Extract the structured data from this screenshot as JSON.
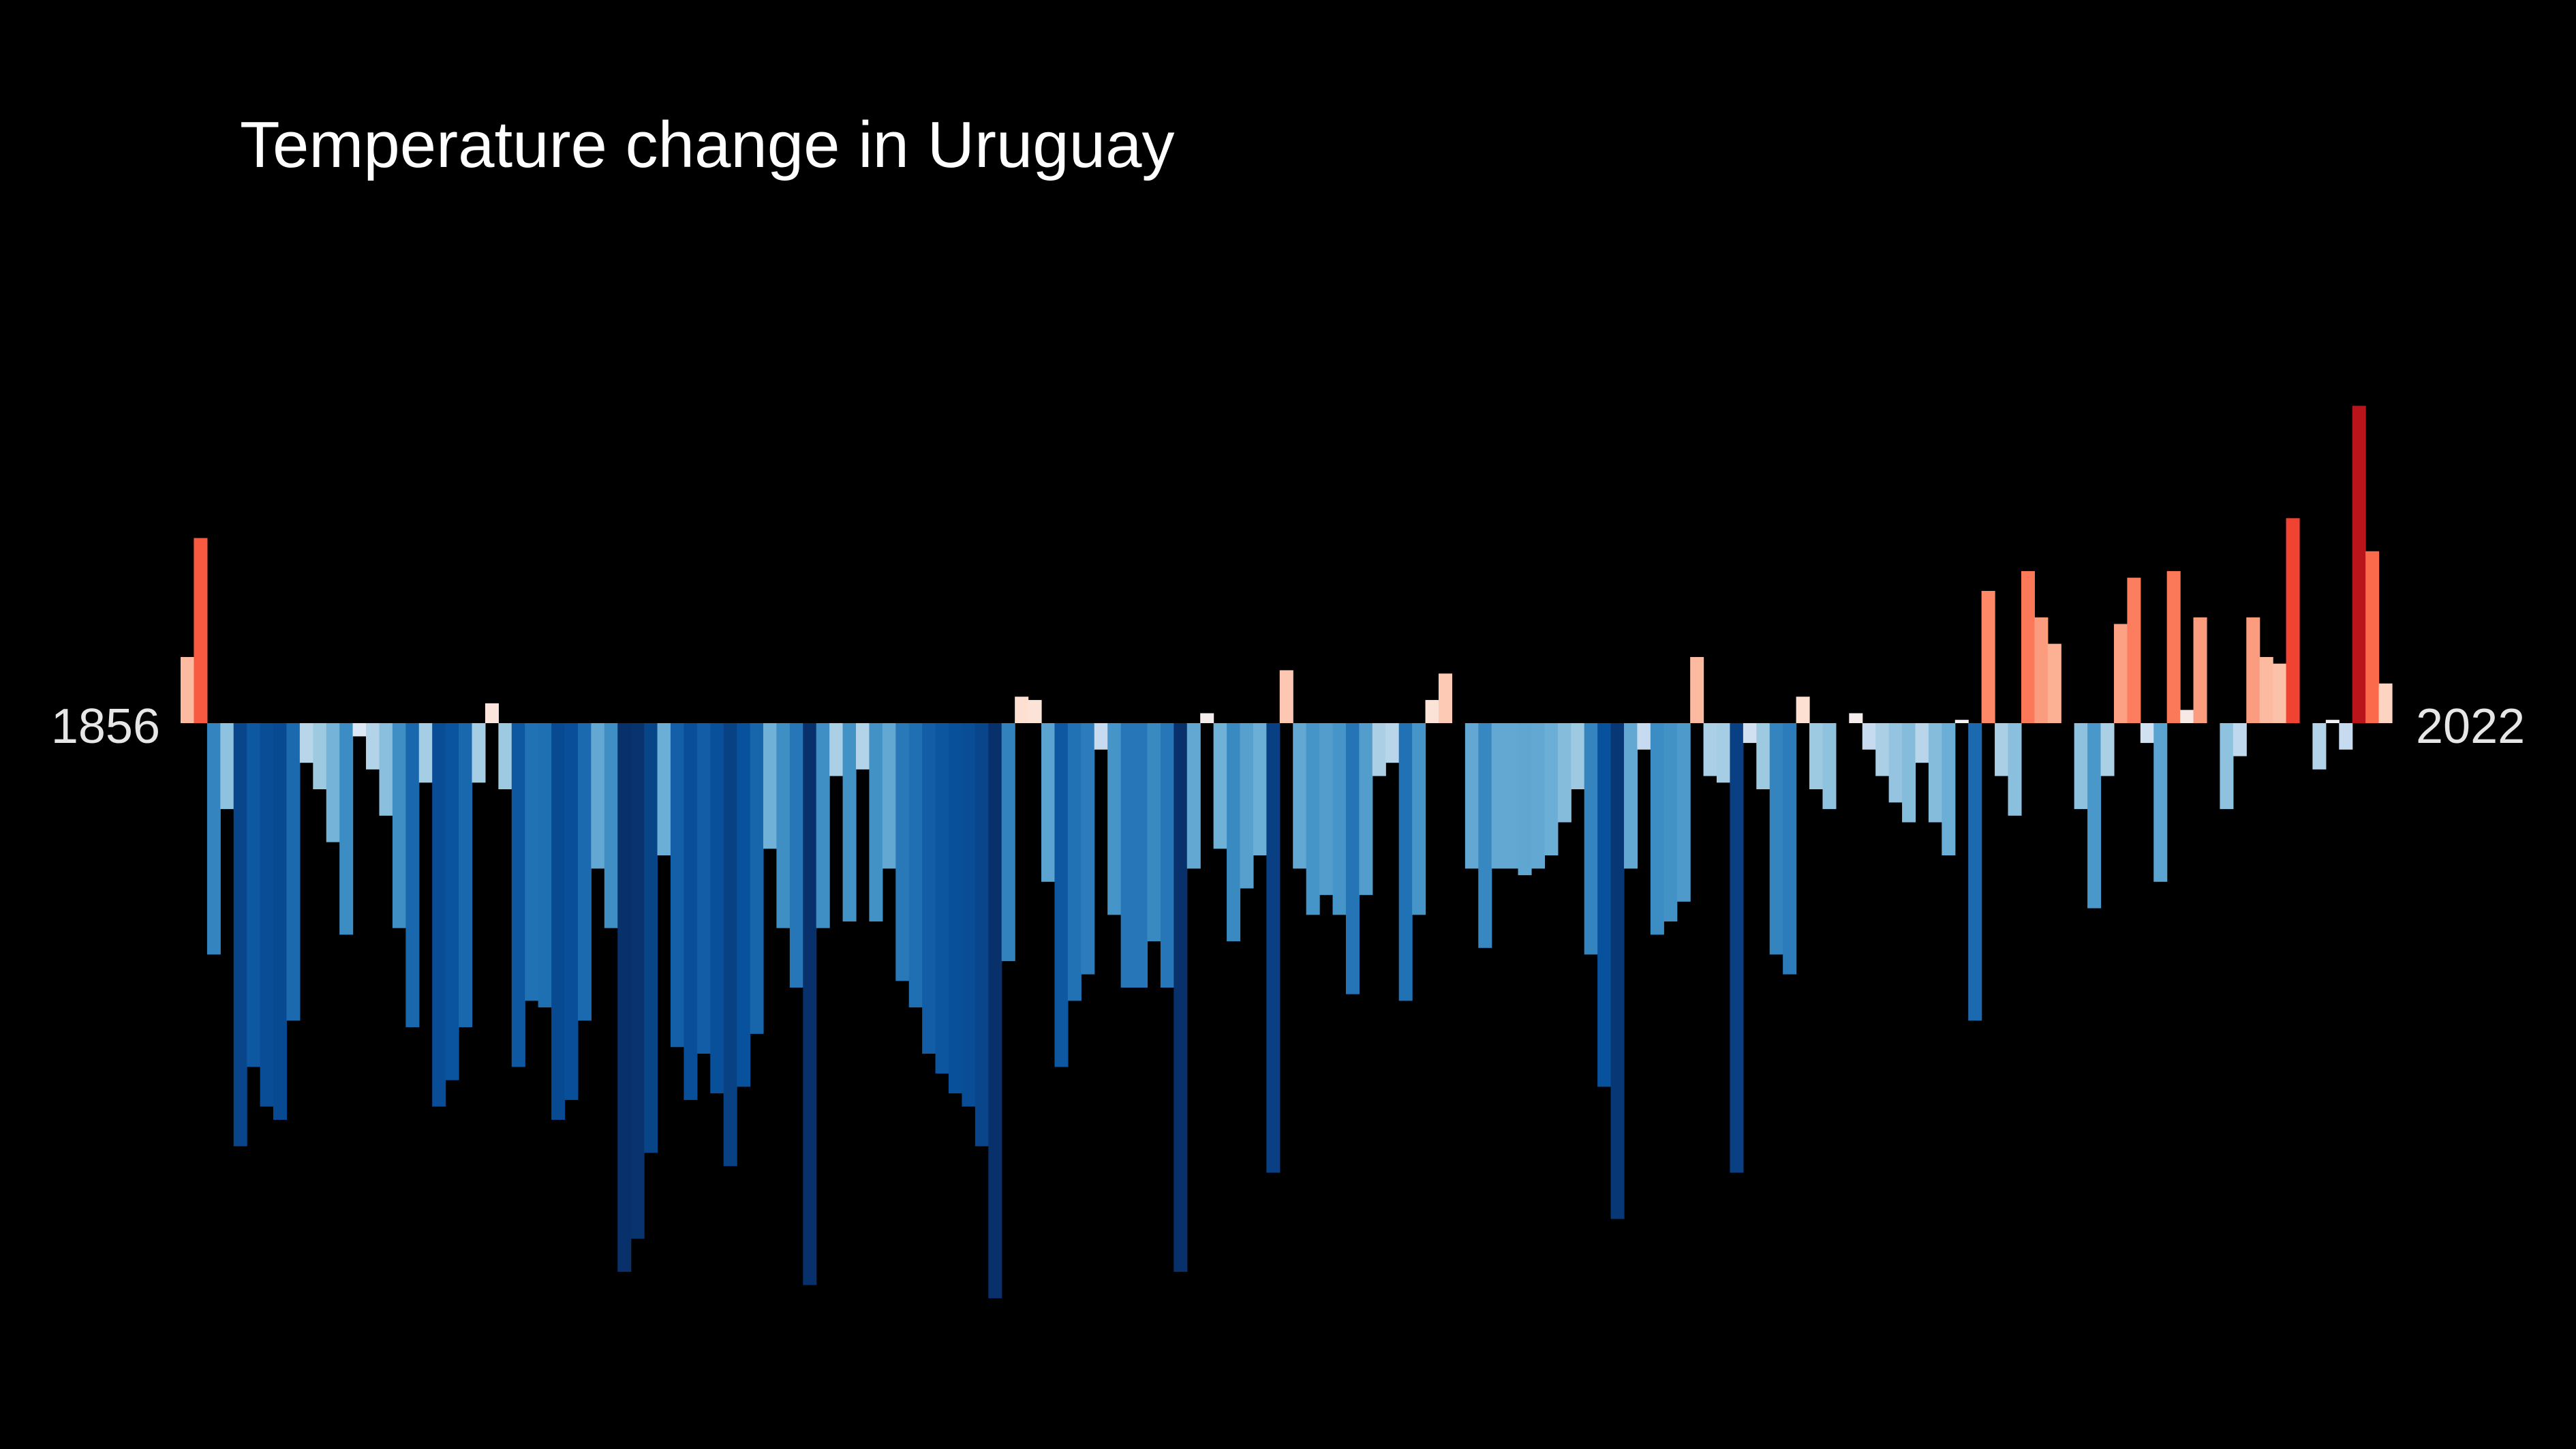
{
  "chart_data": {
    "type": "bar",
    "title": "Temperature change in Uruguay",
    "start_label": "1856",
    "end_label": "2022",
    "x": {
      "start": 1856,
      "end": 2022
    },
    "ylim": [
      -0.87,
      0.68
    ],
    "values": [
      0.1,
      0.28,
      -0.35,
      -0.13,
      -0.64,
      -0.52,
      -0.58,
      -0.6,
      -0.45,
      -0.06,
      -0.1,
      -0.18,
      -0.32,
      -0.02,
      -0.07,
      -0.14,
      -0.31,
      -0.46,
      -0.09,
      -0.58,
      -0.54,
      -0.46,
      -0.09,
      0.03,
      -0.1,
      -0.52,
      -0.42,
      -0.43,
      -0.6,
      -0.57,
      -0.45,
      -0.22,
      -0.31,
      -0.83,
      -0.78,
      -0.65,
      -0.2,
      -0.49,
      -0.57,
      -0.5,
      -0.56,
      -0.67,
      -0.55,
      -0.47,
      -0.19,
      -0.31,
      -0.4,
      -0.85,
      -0.31,
      -0.08,
      -0.3,
      -0.07,
      -0.3,
      -0.22,
      -0.39,
      -0.43,
      -0.5,
      -0.53,
      -0.56,
      -0.58,
      -0.64,
      -0.87,
      -0.36,
      0.04,
      0.035,
      -0.24,
      -0.52,
      -0.42,
      -0.38,
      -0.04,
      -0.29,
      -0.4,
      -0.4,
      -0.33,
      -0.4,
      -0.83,
      -0.22,
      0.015,
      -0.19,
      -0.33,
      -0.25,
      -0.2,
      -0.68,
      0.08,
      -0.22,
      -0.29,
      -0.26,
      -0.29,
      -0.41,
      -0.26,
      -0.08,
      -0.06,
      -0.42,
      -0.29,
      0.035,
      0.075,
      0.0,
      -0.22,
      -0.34,
      -0.22,
      -0.22,
      -0.23,
      -0.22,
      -0.2,
      -0.15,
      -0.1,
      -0.35,
      -0.55,
      -0.75,
      -0.22,
      -0.04,
      -0.32,
      -0.3,
      -0.27,
      0.1,
      -0.08,
      -0.09,
      -0.68,
      -0.03,
      -0.1,
      -0.35,
      -0.38,
      0.04,
      -0.1,
      -0.13,
      0.0,
      0.015,
      -0.04,
      -0.08,
      -0.12,
      -0.15,
      -0.06,
      -0.15,
      -0.2,
      0.005,
      -0.45,
      0.2,
      -0.08,
      -0.14,
      0.23,
      0.16,
      0.12,
      0.0,
      -0.13,
      -0.28,
      -0.08,
      0.15,
      0.22,
      -0.03,
      -0.24,
      0.23,
      0.02,
      0.16,
      0.0,
      -0.13,
      -0.05,
      0.16,
      0.1,
      0.09,
      0.31,
      0.0,
      -0.07,
      0.005,
      -0.04,
      0.48,
      0.26,
      0.06
    ]
  }
}
